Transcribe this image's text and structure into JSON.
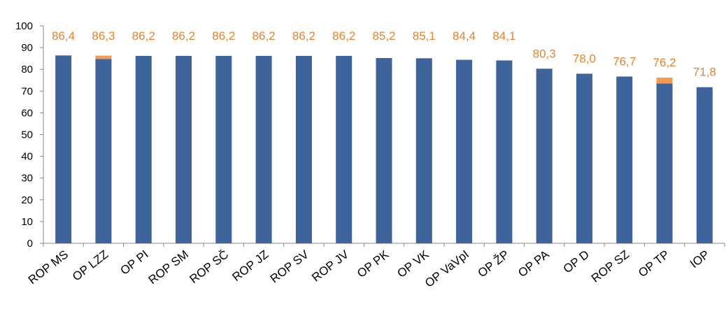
{
  "chart_data": {
    "type": "bar",
    "categories": [
      "ROP MS",
      "OP LZZ",
      "OP PI",
      "ROP SM",
      "ROP SČ",
      "ROP JZ",
      "ROP SV",
      "ROP JV",
      "OP PK",
      "OP VK",
      "OP VaVpI",
      "OP ŽP",
      "OP PA",
      "OP D",
      "ROP SZ",
      "OP TP",
      "IOP"
    ],
    "series": [
      {
        "values": [
          86.4,
          84.8,
          86.2,
          86.2,
          86.2,
          86.2,
          86.2,
          86.2,
          85.2,
          85.1,
          84.4,
          84.1,
          80.3,
          78.0,
          76.7,
          73.5,
          71.8
        ]
      },
      {
        "values": [
          0,
          1.5,
          0,
          0,
          0,
          0,
          0,
          0,
          0,
          0,
          0,
          0,
          0,
          0,
          0,
          2.7,
          0
        ]
      }
    ],
    "data_labels": [
      "86,4",
      "86,3",
      "86,2",
      "86,2",
      "86,2",
      "86,2",
      "86,2",
      "86,2",
      "85,2",
      "85,1",
      "84,4",
      "84,1",
      "80,3",
      "78,0",
      "76,7",
      "76,2",
      "71,8"
    ],
    "yticks": [
      "0",
      "10",
      "20",
      "30",
      "40",
      "50",
      "60",
      "70",
      "80",
      "90",
      "100"
    ],
    "ylim": [
      0,
      100
    ],
    "grid": false,
    "stacked": true,
    "colors": {
      "base": "#3E659B",
      "extra": "#F59A4F",
      "label": "#E8822D"
    }
  }
}
